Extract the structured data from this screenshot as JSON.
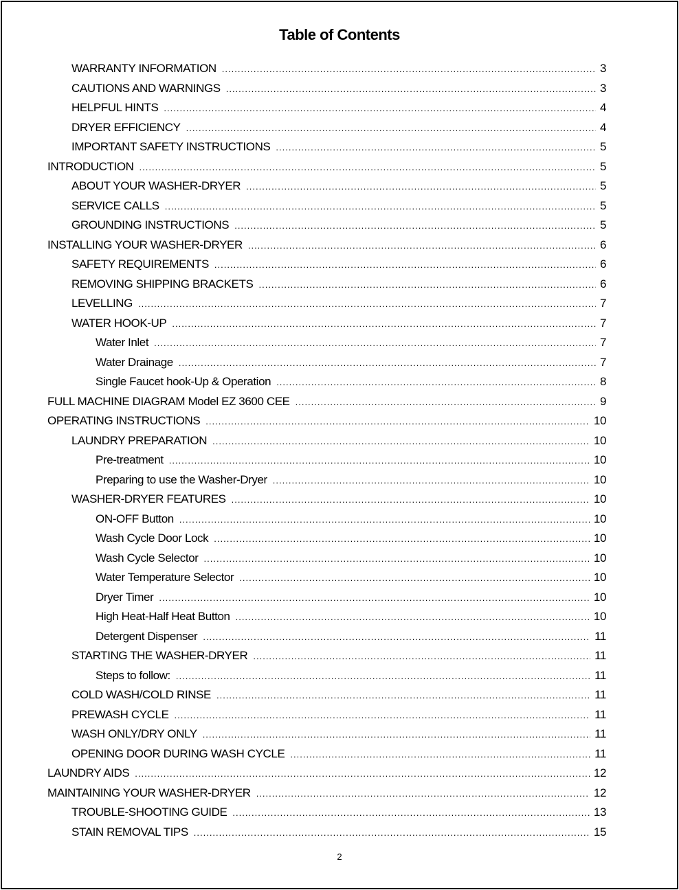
{
  "title": "Table of Contents",
  "entries": [
    {
      "label": "WARRANTY INFORMATION",
      "page": "3",
      "level": 1
    },
    {
      "label": "CAUTIONS AND WARNINGS",
      "page": "3",
      "level": 1
    },
    {
      "label": "HELPFUL HINTS",
      "page": "4",
      "level": 1
    },
    {
      "label": "DRYER EFFICIENCY",
      "page": "4",
      "level": 1
    },
    {
      "label": "IMPORTANT SAFETY INSTRUCTIONS",
      "page": "5",
      "level": 1
    },
    {
      "label": "INTRODUCTION",
      "page": "5",
      "level": 0
    },
    {
      "label": "ABOUT YOUR WASHER-DRYER",
      "page": "5",
      "level": 1
    },
    {
      "label": "SERVICE CALLS",
      "page": "5",
      "level": 1
    },
    {
      "label": "GROUNDING INSTRUCTIONS",
      "page": "5",
      "level": 1
    },
    {
      "label": "INSTALLING YOUR WASHER-DRYER",
      "page": "6",
      "level": 0
    },
    {
      "label": "SAFETY REQUIREMENTS",
      "page": "6",
      "level": 1
    },
    {
      "label": "REMOVING SHIPPING BRACKETS",
      "page": "6",
      "level": 1
    },
    {
      "label": "LEVELLING",
      "page": "7",
      "level": 1
    },
    {
      "label": "WATER HOOK-UP",
      "page": "7",
      "level": 1
    },
    {
      "label": "Water Inlet",
      "page": "7",
      "level": 2
    },
    {
      "label": "Water Drainage",
      "page": "7",
      "level": 2
    },
    {
      "label": "Single Faucet hook-Up & Operation",
      "page": "8",
      "level": 2
    },
    {
      "label": "FULL MACHINE DIAGRAM Model EZ 3600 CEE",
      "page": "9",
      "level": 0
    },
    {
      "label": "OPERATING INSTRUCTIONS",
      "page": "10",
      "level": 0
    },
    {
      "label": "LAUNDRY PREPARATION",
      "page": "10",
      "level": 1
    },
    {
      "label": "Pre-treatment",
      "page": "10",
      "level": 2
    },
    {
      "label": "Preparing to use the Washer-Dryer",
      "page": "10",
      "level": 2
    },
    {
      "label": "WASHER-DRYER FEATURES",
      "page": "10",
      "level": 1
    },
    {
      "label": "ON-OFF Button",
      "page": "10",
      "level": 2
    },
    {
      "label": "Wash Cycle Door Lock",
      "page": "10",
      "level": 2
    },
    {
      "label": "Wash Cycle Selector",
      "page": "10",
      "level": 2
    },
    {
      "label": "Water Temperature Selector",
      "page": "10",
      "level": 2
    },
    {
      "label": "Dryer Timer",
      "page": "10",
      "level": 2
    },
    {
      "label": "High Heat-Half Heat Button",
      "page": "10",
      "level": 2
    },
    {
      "label": "Detergent Dispenser",
      "page": "11",
      "level": 2
    },
    {
      "label": "STARTING THE WASHER-DRYER",
      "page": "11",
      "level": 1
    },
    {
      "label": "Steps to follow:",
      "page": "11",
      "level": 2
    },
    {
      "label": "COLD WASH/COLD RINSE",
      "page": "11",
      "level": 1
    },
    {
      "label": "PREWASH CYCLE",
      "page": "11",
      "level": 1
    },
    {
      "label": "WASH ONLY/DRY ONLY",
      "page": "11",
      "level": 1
    },
    {
      "label": "OPENING DOOR DURING WASH CYCLE",
      "page": "11",
      "level": 1
    },
    {
      "label": "LAUNDRY AIDS",
      "page": "12",
      "level": 0
    },
    {
      "label": "MAINTAINING YOUR WASHER-DRYER",
      "page": "12",
      "level": 0
    },
    {
      "label": "TROUBLE-SHOOTING GUIDE",
      "page": "13",
      "level": 1
    },
    {
      "label": "STAIN REMOVAL TIPS",
      "page": "15",
      "level": 1
    }
  ],
  "footer": {
    "page_number": "2"
  }
}
